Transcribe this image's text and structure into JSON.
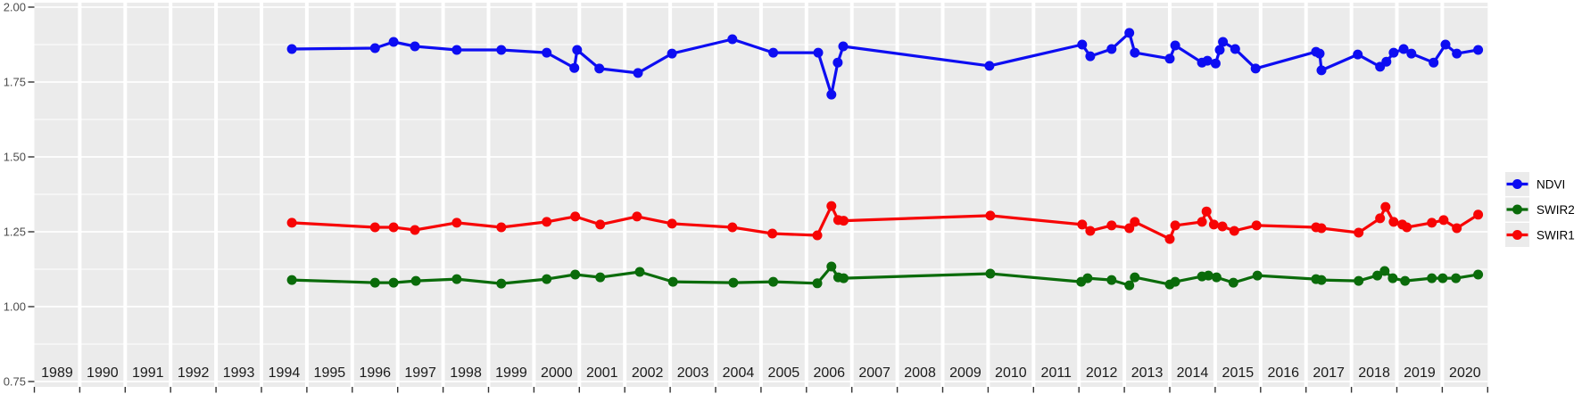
{
  "chart_data": {
    "type": "line",
    "title": "",
    "xlabel": "",
    "ylabel": "",
    "grid": true,
    "x_axis": {
      "range": [
        1989,
        2021
      ],
      "tick_years": [
        1989,
        1990,
        1991,
        1992,
        1993,
        1994,
        1995,
        1996,
        1997,
        1998,
        1999,
        2000,
        2001,
        2002,
        2003,
        2004,
        2005,
        2006,
        2007,
        2008,
        2009,
        2010,
        2011,
        2012,
        2013,
        2014,
        2015,
        2016,
        2017,
        2018,
        2019,
        2020
      ]
    },
    "y_axis": {
      "range": [
        0.75,
        2.02
      ],
      "tick_values": [
        0.75,
        1.0,
        1.25,
        1.5,
        1.75,
        2.0
      ],
      "tick_labels": [
        "0.75",
        "1.00",
        "1.25",
        "1.50",
        "1.75",
        "2.00"
      ],
      "minor_tick_values": [
        0.875,
        1.125,
        1.375,
        1.625,
        1.875
      ]
    },
    "legend": {
      "position": "right",
      "entries": [
        {
          "label": "NDVI",
          "color": "#0d0df2"
        },
        {
          "label": "SWIR2",
          "color": "#0a6b0a"
        },
        {
          "label": "SWIR1",
          "color": "#f70404"
        }
      ]
    },
    "series": [
      {
        "name": "NDVI",
        "color": "#0d0df2",
        "points": [
          [
            1994.67,
            1.86
          ],
          [
            1996.5,
            1.863
          ],
          [
            1996.91,
            1.884
          ],
          [
            1997.38,
            1.869
          ],
          [
            1998.3,
            1.857
          ],
          [
            1999.28,
            1.857
          ],
          [
            2000.28,
            1.848
          ],
          [
            2000.89,
            1.797
          ],
          [
            2000.95,
            1.857
          ],
          [
            2001.44,
            1.795
          ],
          [
            2002.29,
            1.78
          ],
          [
            2003.04,
            1.845
          ],
          [
            2004.37,
            1.893
          ],
          [
            2005.27,
            1.848
          ],
          [
            2006.26,
            1.848
          ],
          [
            2006.55,
            1.708
          ],
          [
            2006.69,
            1.815
          ],
          [
            2006.81,
            1.869
          ],
          [
            2010.03,
            1.804
          ],
          [
            2012.07,
            1.875
          ],
          [
            2012.25,
            1.836
          ],
          [
            2012.72,
            1.86
          ],
          [
            2013.11,
            1.914
          ],
          [
            2013.23,
            1.848
          ],
          [
            2014.0,
            1.828
          ],
          [
            2014.12,
            1.872
          ],
          [
            2014.71,
            1.815
          ],
          [
            2014.83,
            1.821
          ],
          [
            2015.01,
            1.812
          ],
          [
            2015.1,
            1.857
          ],
          [
            2015.17,
            1.884
          ],
          [
            2015.44,
            1.86
          ],
          [
            2015.89,
            1.795
          ],
          [
            2017.22,
            1.851
          ],
          [
            2017.3,
            1.845
          ],
          [
            2017.34,
            1.789
          ],
          [
            2018.14,
            1.842
          ],
          [
            2018.63,
            1.801
          ],
          [
            2018.77,
            1.818
          ],
          [
            2018.93,
            1.848
          ],
          [
            2019.15,
            1.86
          ],
          [
            2019.32,
            1.845
          ],
          [
            2019.81,
            1.815
          ],
          [
            2020.07,
            1.875
          ],
          [
            2020.32,
            1.845
          ],
          [
            2020.79,
            1.857
          ]
        ]
      },
      {
        "name": "SWIR2",
        "color": "#0a6b0a",
        "points": [
          [
            1994.67,
            1.089
          ],
          [
            1996.5,
            1.08
          ],
          [
            1996.91,
            1.08
          ],
          [
            1997.4,
            1.086
          ],
          [
            1998.3,
            1.092
          ],
          [
            1999.28,
            1.077
          ],
          [
            2000.28,
            1.092
          ],
          [
            2000.91,
            1.107
          ],
          [
            2001.46,
            1.098
          ],
          [
            2002.33,
            1.116
          ],
          [
            2003.06,
            1.083
          ],
          [
            2004.39,
            1.08
          ],
          [
            2005.27,
            1.083
          ],
          [
            2006.24,
            1.078
          ],
          [
            2006.55,
            1.134
          ],
          [
            2006.7,
            1.098
          ],
          [
            2006.82,
            1.095
          ],
          [
            2010.05,
            1.11
          ],
          [
            2012.05,
            1.083
          ],
          [
            2012.19,
            1.095
          ],
          [
            2012.72,
            1.089
          ],
          [
            2013.11,
            1.071
          ],
          [
            2013.23,
            1.098
          ],
          [
            2014.0,
            1.074
          ],
          [
            2014.12,
            1.083
          ],
          [
            2014.71,
            1.101
          ],
          [
            2014.85,
            1.104
          ],
          [
            2015.03,
            1.098
          ],
          [
            2015.4,
            1.08
          ],
          [
            2015.93,
            1.104
          ],
          [
            2017.22,
            1.092
          ],
          [
            2017.34,
            1.089
          ],
          [
            2018.16,
            1.086
          ],
          [
            2018.57,
            1.104
          ],
          [
            2018.73,
            1.119
          ],
          [
            2018.91,
            1.095
          ],
          [
            2019.18,
            1.086
          ],
          [
            2019.77,
            1.095
          ],
          [
            2020.01,
            1.095
          ],
          [
            2020.3,
            1.095
          ],
          [
            2020.79,
            1.107
          ]
        ]
      },
      {
        "name": "SWIR1",
        "color": "#f70404",
        "points": [
          [
            1994.67,
            1.28
          ],
          [
            1996.5,
            1.265
          ],
          [
            1996.91,
            1.265
          ],
          [
            1997.38,
            1.256
          ],
          [
            1998.3,
            1.28
          ],
          [
            1999.28,
            1.265
          ],
          [
            2000.28,
            1.283
          ],
          [
            2000.91,
            1.301
          ],
          [
            2001.46,
            1.274
          ],
          [
            2002.27,
            1.301
          ],
          [
            2003.04,
            1.277
          ],
          [
            2004.37,
            1.265
          ],
          [
            2005.25,
            1.244
          ],
          [
            2006.24,
            1.238
          ],
          [
            2006.55,
            1.336
          ],
          [
            2006.7,
            1.289
          ],
          [
            2006.82,
            1.287
          ],
          [
            2010.05,
            1.304
          ],
          [
            2012.07,
            1.274
          ],
          [
            2012.25,
            1.253
          ],
          [
            2012.72,
            1.271
          ],
          [
            2013.11,
            1.262
          ],
          [
            2013.23,
            1.283
          ],
          [
            2014.0,
            1.226
          ],
          [
            2014.12,
            1.271
          ],
          [
            2014.71,
            1.283
          ],
          [
            2014.81,
            1.318
          ],
          [
            2014.97,
            1.274
          ],
          [
            2015.16,
            1.268
          ],
          [
            2015.42,
            1.253
          ],
          [
            2015.91,
            1.271
          ],
          [
            2017.22,
            1.265
          ],
          [
            2017.34,
            1.262
          ],
          [
            2018.16,
            1.247
          ],
          [
            2018.63,
            1.295
          ],
          [
            2018.75,
            1.333
          ],
          [
            2018.93,
            1.283
          ],
          [
            2019.12,
            1.274
          ],
          [
            2019.22,
            1.265
          ],
          [
            2019.77,
            1.28
          ],
          [
            2020.03,
            1.289
          ],
          [
            2020.32,
            1.262
          ],
          [
            2020.79,
            1.307
          ]
        ]
      }
    ]
  },
  "colors": {
    "figure_background": "#ffffff",
    "panel_background": "#ebebeb",
    "gridline": "#ffffff",
    "axis_text": "#4d4d4d",
    "year_label_text": "#1a1a1a",
    "tick_mark": "#333333",
    "legend_text": "#000000",
    "legend_key_background": "#ebebeb"
  }
}
